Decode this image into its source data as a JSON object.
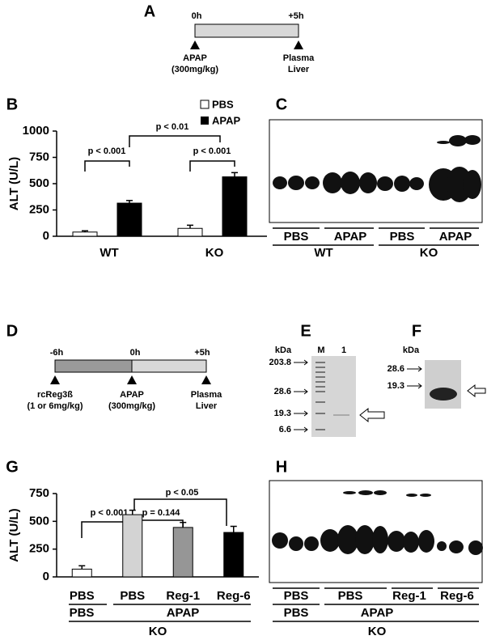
{
  "labels": [
    "A",
    "B",
    "C",
    "D",
    "E",
    "F",
    "G",
    "H"
  ],
  "panel_a": {
    "start": "0h",
    "end": "+5h",
    "treatment": [
      "APAP",
      "(300mg/kg)"
    ],
    "sample": [
      "Plasma",
      "Liver"
    ]
  },
  "chart_data": [
    {
      "type": "bar",
      "ylabel": "ALT (U/L)",
      "categories": [
        "WT",
        "KO"
      ],
      "series": [
        {
          "name": "PBS",
          "color": "#ffffff",
          "values": [
            40,
            75
          ],
          "errors": [
            12,
            30
          ]
        },
        {
          "name": "APAP",
          "color": "#000000",
          "values": [
            315,
            565
          ],
          "errors": [
            25,
            40
          ]
        }
      ],
      "ylim": [
        0,
        1000
      ],
      "yticks": [
        0,
        250,
        500,
        750,
        1000
      ],
      "annotations": [
        "p < 0.001",
        "p < 0.001",
        "p < 0.01"
      ]
    },
    {
      "type": "bar",
      "ylabel": "ALT (U/L)",
      "categories": [
        "PBS",
        "PBS",
        "Reg-1",
        "Reg-6"
      ],
      "group_labels": [
        "PBS",
        "APAP"
      ],
      "strain": "KO",
      "values": [
        70,
        560,
        445,
        400
      ],
      "errors": [
        30,
        40,
        45,
        55
      ],
      "colors": [
        "#ffffff",
        "#d3d3d3",
        "#969696",
        "#000000"
      ],
      "ylim": [
        0,
        750
      ],
      "yticks": [
        0,
        250,
        500,
        750
      ],
      "annotations": [
        "p < 0.001",
        "p = 0.144",
        "p < 0.05"
      ]
    }
  ],
  "panel_c": {
    "groups": [
      "PBS",
      "APAP",
      "PBS",
      "APAP"
    ],
    "genotypes": [
      "WT",
      "KO"
    ]
  },
  "panel_d": {
    "times": [
      "-6h",
      "0h",
      "+5h"
    ],
    "events": [
      [
        "rcReg3ß",
        "(1 or 6mg/kg)"
      ],
      [
        "APAP",
        "(300mg/kg)"
      ],
      [
        "Plasma",
        "Liver"
      ]
    ]
  },
  "panel_e": {
    "unit": "kDa",
    "lanes": [
      "M",
      "1"
    ],
    "markers": [
      "203.8",
      "28.6",
      "19.3",
      "6.6"
    ]
  },
  "panel_f": {
    "unit": "kDa",
    "markers": [
      "28.6",
      "19.3"
    ]
  },
  "panel_h": {
    "row1": [
      "PBS",
      "PBS",
      "Reg-1",
      "Reg-6"
    ],
    "row2": [
      "PBS",
      "APAP"
    ],
    "row3": "KO"
  }
}
